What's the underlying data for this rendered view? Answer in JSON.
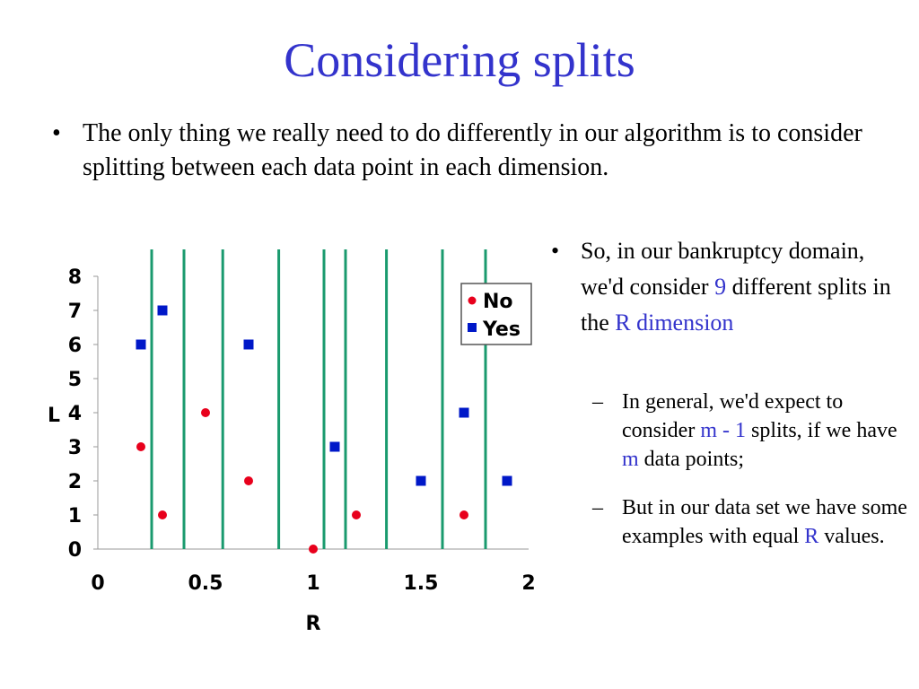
{
  "title": "Considering splits",
  "bullet1": {
    "text": "The only thing we really need to do differently in our algorithm is to consider splitting between each data point in each dimension."
  },
  "bullet2": {
    "part1": "So, in our bankruptcy domain, we'd consider ",
    "num": "9",
    "part2": " different splits in the ",
    "dim": "R dimension"
  },
  "sub1": {
    "part1": "In general, we'd expect to consider ",
    "m1": "m - 1",
    "part2": " splits, if we have ",
    "m2": "m",
    "part3": " data points;"
  },
  "sub2": {
    "part1": "But in our data set we have some examples with equal ",
    "r": "R",
    "part2": " values."
  },
  "colors": {
    "title": "#3333cc",
    "no": "#e8001c",
    "yes": "#0018c8",
    "split": "#1a9a6e"
  },
  "chart_data": {
    "type": "scatter",
    "xlabel": "R",
    "ylabel": "L",
    "xlim": [
      0,
      2
    ],
    "ylim": [
      0,
      8
    ],
    "xticks": [
      "0",
      "0.5",
      "1",
      "1.5",
      "2"
    ],
    "yticks": [
      "0",
      "1",
      "2",
      "3",
      "4",
      "5",
      "6",
      "7",
      "8"
    ],
    "legend_position": "top-right",
    "series": [
      {
        "name": "No",
        "marker": "circle",
        "points": [
          [
            0.2,
            3
          ],
          [
            0.3,
            1
          ],
          [
            0.5,
            4
          ],
          [
            0.7,
            2
          ],
          [
            1.0,
            0
          ],
          [
            1.2,
            1
          ],
          [
            1.7,
            1
          ]
        ]
      },
      {
        "name": "Yes",
        "marker": "square",
        "points": [
          [
            0.2,
            6
          ],
          [
            0.3,
            7
          ],
          [
            0.7,
            6
          ],
          [
            1.1,
            3
          ],
          [
            1.5,
            2
          ],
          [
            1.7,
            4
          ],
          [
            1.9,
            2
          ]
        ]
      }
    ],
    "split_lines_x": [
      0.25,
      0.4,
      0.58,
      0.84,
      1.05,
      1.15,
      1.34,
      1.6,
      1.8
    ]
  }
}
